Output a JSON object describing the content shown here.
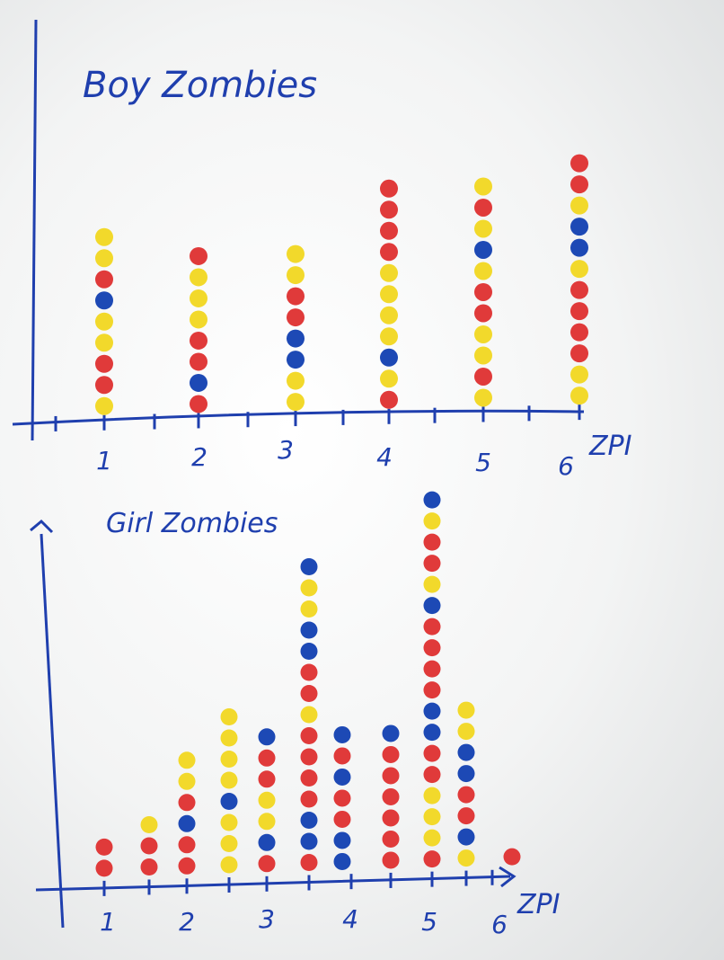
{
  "colors": {
    "ink": "#1f3fae",
    "red": "#e03a3a",
    "yellow": "#f2d92b",
    "blue": "#1d49b5",
    "board": "#f5f6f6"
  },
  "boy_chart": {
    "title": "Boy Zombies",
    "axis_label": "ZPI",
    "tick_labels": [
      "1",
      "2",
      "3",
      "4",
      "5",
      "6"
    ],
    "columns": [
      [
        "yellow",
        "red",
        "red",
        "yellow",
        "yellow",
        "blue",
        "red",
        "yellow",
        "yellow"
      ],
      [
        "red",
        "blue",
        "red",
        "red",
        "yellow",
        "yellow",
        "yellow",
        "red"
      ],
      [
        "yellow",
        "yellow",
        "blue",
        "blue",
        "red",
        "red",
        "yellow",
        "yellow"
      ],
      [
        "red",
        "yellow",
        "blue",
        "yellow",
        "yellow",
        "yellow",
        "yellow",
        "red",
        "red",
        "red",
        "red"
      ],
      [
        "yellow",
        "red",
        "yellow",
        "yellow",
        "red",
        "red",
        "yellow",
        "blue",
        "yellow",
        "red",
        "yellow"
      ],
      [
        "yellow",
        "yellow",
        "red",
        "red",
        "red",
        "red",
        "yellow",
        "blue",
        "blue",
        "yellow",
        "red",
        "red"
      ]
    ]
  },
  "girl_chart": {
    "title": "Girl Zombies",
    "axis_label": "ZPI",
    "tick_labels": [
      "1",
      "2",
      "3",
      "4",
      "5",
      "6"
    ],
    "columns": [
      [
        "red",
        "red"
      ],
      [
        "red",
        "red",
        "yellow"
      ],
      [
        "red",
        "red",
        "blue",
        "red",
        "yellow",
        "yellow"
      ],
      [
        "yellow",
        "yellow",
        "yellow",
        "blue",
        "yellow",
        "yellow",
        "yellow",
        "yellow"
      ],
      [
        "red",
        "blue",
        "yellow",
        "yellow",
        "red",
        "red",
        "blue"
      ],
      [
        "red",
        "blue",
        "blue",
        "red",
        "red",
        "red",
        "red",
        "yellow",
        "red",
        "red",
        "blue",
        "blue",
        "yellow",
        "yellow",
        "blue"
      ],
      [
        "blue",
        "blue",
        "red",
        "red",
        "blue",
        "red",
        "blue"
      ],
      [
        "red",
        "red",
        "red",
        "red",
        "red",
        "red",
        "blue"
      ],
      [
        "red",
        "yellow",
        "yellow",
        "yellow",
        "red",
        "red",
        "blue",
        "blue",
        "red",
        "red",
        "red",
        "red",
        "blue",
        "yellow",
        "red",
        "red",
        "yellow",
        "blue"
      ],
      [
        "yellow",
        "blue",
        "red",
        "red",
        "blue",
        "blue",
        "yellow",
        "yellow"
      ],
      [
        "red"
      ]
    ]
  }
}
